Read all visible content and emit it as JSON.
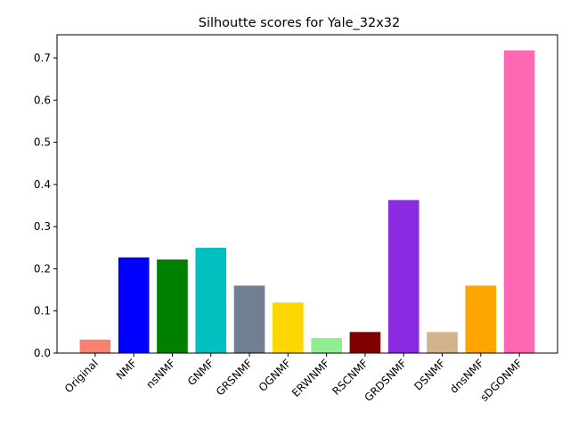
{
  "chart_data": {
    "type": "bar",
    "title": "Silhoutte scores for Yale_32x32",
    "xlabel": "",
    "ylabel": "",
    "categories": [
      "Original",
      "NMF",
      "nsNMF",
      "GNMF",
      "GRSNMF",
      "OGNMF",
      "ERWNMF",
      "RSCNMF",
      "GRDSNMF",
      "DSNMF",
      "dnsNMF",
      "sDGONMF"
    ],
    "values": [
      0.032,
      0.227,
      0.222,
      0.25,
      0.16,
      0.12,
      0.036,
      0.05,
      0.363,
      0.05,
      0.16,
      0.718
    ],
    "colors": [
      "#fa8072",
      "#0000ff",
      "#008000",
      "#00c0c0",
      "#708090",
      "#ffd700",
      "#90ee90",
      "#800000",
      "#8a2be2",
      "#d2b48c",
      "#ffa500",
      "#ff69b4"
    ],
    "ylim": [
      0,
      0.755
    ],
    "yticks": [
      0.0,
      0.1,
      0.2,
      0.3,
      0.4,
      0.5,
      0.6,
      0.7
    ],
    "ytick_labels": [
      "0.0",
      "0.1",
      "0.2",
      "0.3",
      "0.4",
      "0.5",
      "0.6",
      "0.7"
    ],
    "grid": false,
    "legend": "none"
  }
}
